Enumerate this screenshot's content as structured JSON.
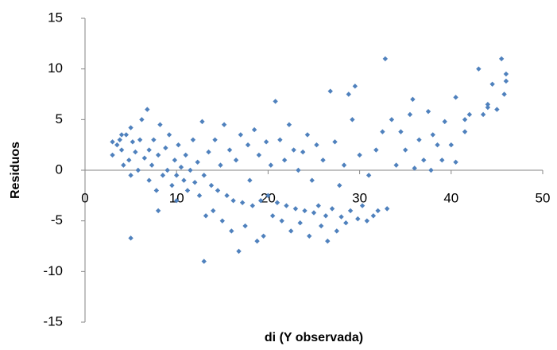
{
  "chart_data": {
    "type": "scatter",
    "x_label": "di (Y observada)",
    "y_label": "Residuos",
    "color": "#4f81bd",
    "x": [
      3,
      3.5,
      3.8,
      4,
      4.2,
      4.5,
      4.8,
      5,
      5,
      5.2,
      5.5,
      5.8,
      6,
      6.2,
      6.5,
      6.8,
      7,
      7,
      7.3,
      7.5,
      7.8,
      8,
      8.2,
      8.5,
      8.8,
      9,
      9.2,
      9.5,
      9.8,
      10,
      10.2,
      10.5,
      10.8,
      11,
      11.2,
      11.5,
      11.8,
      12,
      12.3,
      12.5,
      12.8,
      13,
      13.2,
      13.5,
      13.8,
      14,
      14.2,
      14.5,
      14.8,
      15,
      15.2,
      15.5,
      15.8,
      16,
      16.2,
      16.5,
      16.8,
      17,
      17.2,
      17.5,
      17.8,
      18,
      18.3,
      18.5,
      18.8,
      19,
      19.2,
      19.5,
      19.8,
      20,
      20.3,
      20.5,
      20.8,
      21,
      21.3,
      21.5,
      21.8,
      22,
      22.3,
      22.5,
      22.8,
      23,
      23.3,
      23.5,
      23.8,
      24,
      24.3,
      24.5,
      24.8,
      25,
      25.3,
      25.5,
      25.8,
      26,
      26.3,
      26.5,
      26.8,
      27,
      27.3,
      27.5,
      27.8,
      28,
      28.3,
      28.5,
      28.8,
      29,
      29.2,
      29.5,
      29.8,
      30,
      30.3,
      30.8,
      31,
      31.5,
      31.8,
      32,
      32.5,
      32.8,
      33,
      33.5,
      34,
      34.5,
      35,
      35.5,
      35.8,
      36,
      36.5,
      37,
      37.5,
      37.8,
      38,
      38.5,
      39,
      39.3,
      40,
      40.5,
      40.5,
      41.5,
      42,
      43,
      43.5,
      44,
      44.5,
      45,
      45.5,
      45.8,
      46,
      46,
      41.5,
      44,
      5,
      13,
      8,
      10,
      3,
      4
    ],
    "values": [
      1.5,
      2.5,
      3,
      2,
      0.5,
      3.5,
      1,
      4.2,
      -0.5,
      2.8,
      1.8,
      0,
      3,
      5,
      1.2,
      6,
      2,
      -1,
      0.5,
      3,
      -2,
      1.5,
      4.5,
      -0.5,
      2.2,
      0,
      3.5,
      -1.5,
      1,
      -0.5,
      2.5,
      0.3,
      -1,
      1.5,
      -2,
      0,
      3,
      -1.2,
      0.8,
      -2.5,
      4.8,
      -0.5,
      -4.5,
      1.8,
      -1.5,
      -4,
      3,
      -2,
      0.5,
      -5,
      4.5,
      -2.5,
      2,
      -6,
      -3,
      1,
      -8,
      3.5,
      -3.2,
      -5.5,
      2.5,
      -1,
      -3.5,
      4,
      -7,
      1.5,
      -3,
      -6.5,
      2.8,
      -2.5,
      0.5,
      -4.5,
      6.8,
      -3.2,
      3,
      -5,
      1,
      -3.5,
      4.5,
      -6,
      2,
      -3.8,
      0,
      -5.2,
      1.8,
      -4,
      3.5,
      -6.5,
      -1,
      -4.2,
      2.5,
      -3.5,
      -5.5,
      1,
      -4.5,
      -7,
      7.8,
      -3.8,
      2.8,
      -6,
      -1.5,
      -4.6,
      0.5,
      -5.2,
      7.5,
      -4,
      5,
      8.3,
      -4.8,
      1.5,
      -3.5,
      -5,
      -0.5,
      -4.5,
      2,
      -4,
      3.8,
      11,
      -3.8,
      5,
      0.5,
      3.8,
      2,
      5.5,
      7,
      0.2,
      3,
      1,
      5.8,
      0,
      3.5,
      2.5,
      1,
      4.8,
      2.5,
      7.2,
      0.8,
      3.8,
      5.5,
      10,
      5.5,
      6.5,
      8.5,
      6,
      11,
      7.5,
      9.5,
      8.8,
      5,
      6.2,
      -6.7,
      -9,
      -4,
      -3,
      2.8,
      3.5
    ],
    "xlim": [
      0,
      50
    ],
    "xticks": [
      0,
      10,
      20,
      30,
      40,
      50
    ],
    "ylim": [
      -15,
      15
    ],
    "yticks": [
      -15,
      -10,
      -5,
      0,
      5,
      10,
      15
    ]
  }
}
